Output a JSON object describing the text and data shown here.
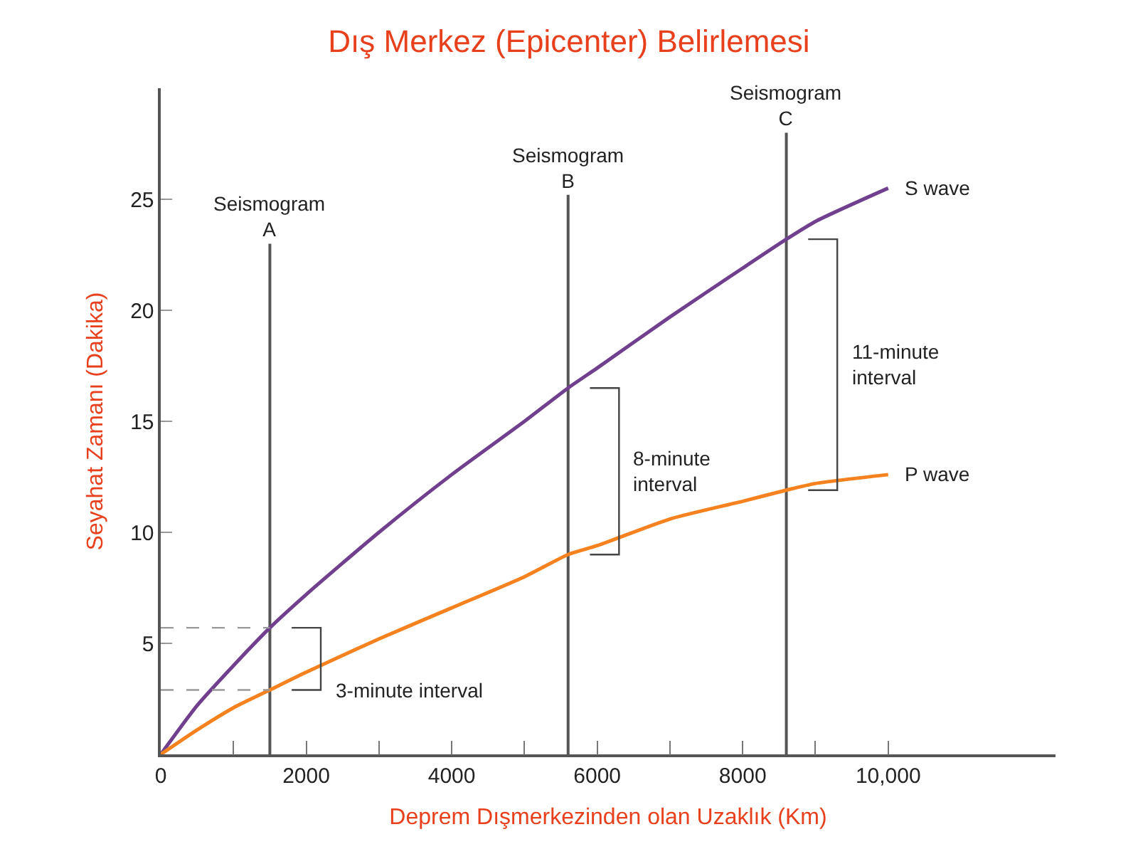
{
  "chart_data": {
    "type": "line",
    "title": "Dış Merkez (Epicenter) Belirlemesi",
    "xlabel": "Deprem Dışmerkezinden olan Uzaklık (Km)",
    "ylabel": "Seyahat Zamanı (Dakika)",
    "series": [
      {
        "name": "S wave",
        "color": "#70408f",
        "x": [
          0,
          500,
          1000,
          1500,
          2000,
          3000,
          4000,
          5000,
          5600,
          6000,
          7000,
          8000,
          8600,
          9000,
          10000
        ],
        "values": [
          0,
          2.2,
          4.0,
          5.7,
          7.2,
          10.0,
          12.6,
          15.0,
          16.5,
          17.4,
          19.7,
          21.9,
          23.2,
          24.0,
          25.5
        ]
      },
      {
        "name": "P wave",
        "color": "#f5821f",
        "x": [
          0,
          500,
          1000,
          1500,
          2000,
          3000,
          4000,
          5000,
          5600,
          6000,
          7000,
          8000,
          8600,
          9000,
          10000
        ],
        "values": [
          0,
          1.1,
          2.1,
          2.9,
          3.7,
          5.2,
          6.6,
          8.0,
          9.0,
          9.4,
          10.6,
          11.4,
          11.9,
          12.2,
          12.6
        ]
      }
    ],
    "xlim": [
      0,
      12300
    ],
    "ylim": [
      0,
      30
    ],
    "xticks": [
      0,
      2000,
      4000,
      6000,
      8000,
      {
        "value": 10000,
        "label": "10,000"
      },
      {
        "value": 1000,
        "label": null
      },
      {
        "value": 3000,
        "label": null
      },
      {
        "value": 5000,
        "label": null
      },
      {
        "value": 7000,
        "label": null
      },
      {
        "value": 9000,
        "label": null
      }
    ],
    "yticks": [
      5,
      10,
      15,
      20,
      25
    ],
    "annotations": [
      "3-minute interval",
      "8-minute\ninterval",
      "11-minute\ninterval"
    ],
    "ref_lines": [
      {
        "axis": "x",
        "value": 1500,
        "label": "Seismogram\nA",
        "color": "#555555"
      },
      {
        "axis": "x",
        "value": 5600,
        "label": "Seismogram\nB",
        "color": "#555555"
      },
      {
        "axis": "x",
        "value": 8600,
        "label": "Seismogram\nC",
        "color": "#555555"
      },
      {
        "axis": "y",
        "value": 5.7,
        "label": null,
        "color": "#999999",
        "line_style": "dashed"
      },
      {
        "axis": "y",
        "value": 2.9,
        "label": null,
        "color": "#999999",
        "line_style": "dashed"
      }
    ],
    "grid": false,
    "legend": false,
    "marker": "none",
    "line_style": "solid"
  }
}
